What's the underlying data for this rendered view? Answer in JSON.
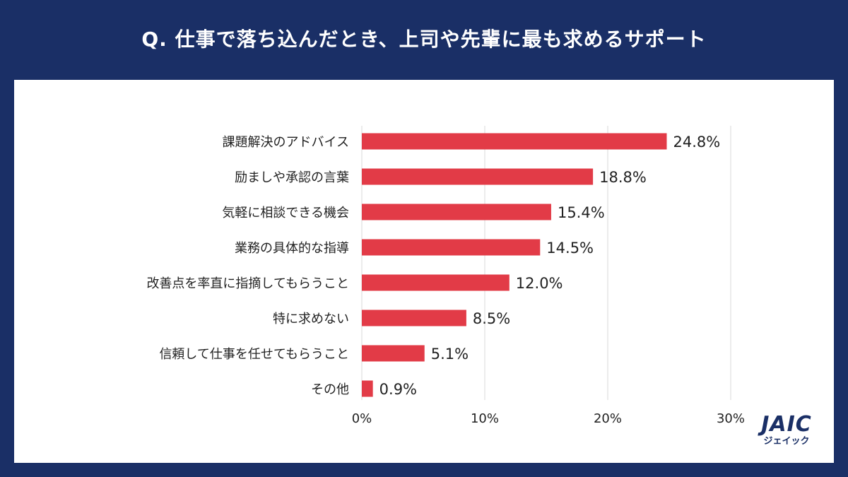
{
  "title": "Q. 仕事で落ち込んだとき、上司や先輩に最も求めるサポート",
  "logo": {
    "mark": "JAIC",
    "sub": "ジェイック"
  },
  "chart_data": {
    "type": "bar",
    "orientation": "horizontal",
    "categories": [
      "課題解決のアドバイス",
      "励ましや承認の言葉",
      "気軽に相談できる機会",
      "業務の具体的な指導",
      "改善点を率直に指摘してもらうこと",
      "特に求めない",
      "信頼して仕事を任せてもらうこと",
      "その他"
    ],
    "values": [
      24.8,
      18.8,
      15.4,
      14.5,
      12.0,
      8.5,
      5.1,
      0.9
    ],
    "value_labels": [
      "24.8%",
      "18.8%",
      "15.4%",
      "14.5%",
      "12.0%",
      "8.5%",
      "5.1%",
      "0.9%"
    ],
    "xlim": [
      0,
      30
    ],
    "xticks": [
      0,
      10,
      20,
      30
    ],
    "xtick_labels": [
      "0%",
      "10%",
      "20%",
      "30%"
    ],
    "grid": true,
    "bar_color": "#e23b47",
    "grid_color": "#d9d9d9"
  }
}
